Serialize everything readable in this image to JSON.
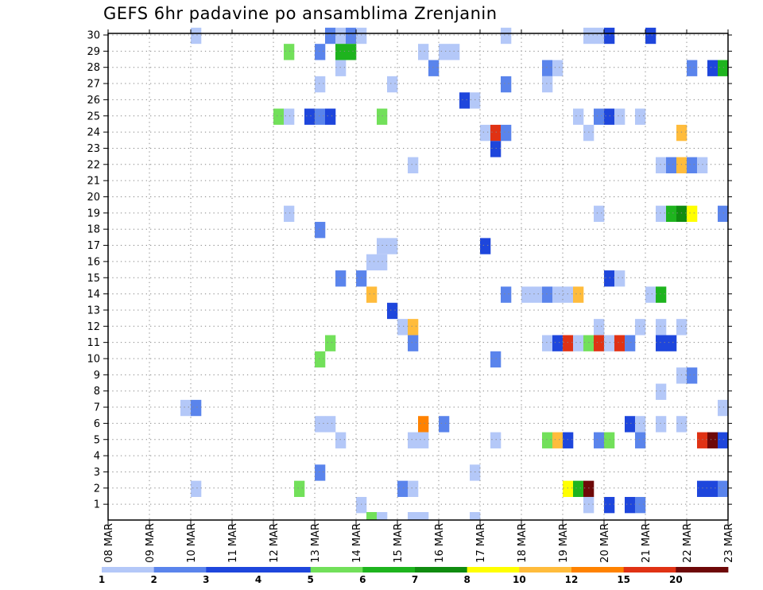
{
  "chart_data": {
    "type": "heatmap",
    "title": "GEFS 6hr padavine po ansamblima Zrenjanin",
    "xlabel": "",
    "ylabel": "",
    "x_tick_labels": [
      "08 MAR",
      "09 MAR",
      "10 MAR",
      "11 MAR",
      "12 MAR",
      "13 MAR",
      "14 MAR",
      "15 MAR",
      "16 MAR",
      "17 MAR",
      "18 MAR",
      "19 MAR",
      "20 MAR",
      "21 MAR",
      "22 MAR",
      "23 MAR"
    ],
    "y_tick_labels": [
      "1",
      "2",
      "3",
      "4",
      "5",
      "6",
      "7",
      "8",
      "9",
      "10",
      "11",
      "12",
      "13",
      "14",
      "15",
      "16",
      "17",
      "18",
      "19",
      "20",
      "21",
      "22",
      "23",
      "24",
      "25",
      "26",
      "27",
      "28",
      "29",
      "30"
    ],
    "x_unit": "6-hour step from 08 MAR 00Z",
    "xlim": [
      0,
      60
    ],
    "ylim": [
      0,
      30
    ],
    "grid": true,
    "legend": {
      "placement": "bottom",
      "labels": [
        "1",
        "2",
        "3",
        "4",
        "5",
        "6",
        "7",
        "8",
        "10",
        "12",
        "15",
        "20"
      ],
      "colors": [
        "#b4c8f8",
        "#5a84ec",
        "#1e46dc",
        "#1e46dc",
        "#72e05a",
        "#1eb41e",
        "#108c10",
        "#ffff00",
        "#ffbc3c",
        "#ff8200",
        "#e03214",
        "#6e0808"
      ]
    },
    "cells": [
      {
        "t": 8,
        "m": 30,
        "c": 0
      },
      {
        "t": 21,
        "m": 30,
        "c": 1
      },
      {
        "t": 22,
        "m": 30,
        "c": 0
      },
      {
        "t": 23,
        "m": 30,
        "c": 1
      },
      {
        "t": 24,
        "m": 30,
        "c": 0
      },
      {
        "t": 38,
        "m": 30,
        "c": 0
      },
      {
        "t": 46,
        "m": 30,
        "c": 0
      },
      {
        "t": 47,
        "m": 30,
        "c": 0
      },
      {
        "t": 48,
        "m": 30,
        "c": 2
      },
      {
        "t": 52,
        "m": 30,
        "c": 2
      },
      {
        "t": 17,
        "m": 29,
        "c": 4
      },
      {
        "t": 20,
        "m": 29,
        "c": 1
      },
      {
        "t": 22,
        "m": 29,
        "c": 5
      },
      {
        "t": 23,
        "m": 29,
        "c": 5
      },
      {
        "t": 30,
        "m": 29,
        "c": 0
      },
      {
        "t": 32,
        "m": 29,
        "c": 0
      },
      {
        "t": 33,
        "m": 29,
        "c": 0
      },
      {
        "t": 22,
        "m": 28,
        "c": 0
      },
      {
        "t": 31,
        "m": 28,
        "c": 1
      },
      {
        "t": 42,
        "m": 28,
        "c": 1
      },
      {
        "t": 43,
        "m": 28,
        "c": 0
      },
      {
        "t": 56,
        "m": 28,
        "c": 1
      },
      {
        "t": 58,
        "m": 28,
        "c": 2
      },
      {
        "t": 59,
        "m": 28,
        "c": 5
      },
      {
        "t": 20,
        "m": 27,
        "c": 0
      },
      {
        "t": 27,
        "m": 27,
        "c": 0
      },
      {
        "t": 38,
        "m": 27,
        "c": 1
      },
      {
        "t": 42,
        "m": 27,
        "c": 0
      },
      {
        "t": 34,
        "m": 26,
        "c": 2
      },
      {
        "t": 35,
        "m": 26,
        "c": 0
      },
      {
        "t": 16,
        "m": 25,
        "c": 4
      },
      {
        "t": 17,
        "m": 25,
        "c": 0
      },
      {
        "t": 19,
        "m": 25,
        "c": 2
      },
      {
        "t": 20,
        "m": 25,
        "c": 1
      },
      {
        "t": 21,
        "m": 25,
        "c": 2
      },
      {
        "t": 26,
        "m": 25,
        "c": 4
      },
      {
        "t": 45,
        "m": 25,
        "c": 0
      },
      {
        "t": 47,
        "m": 25,
        "c": 1
      },
      {
        "t": 48,
        "m": 25,
        "c": 2
      },
      {
        "t": 49,
        "m": 25,
        "c": 0
      },
      {
        "t": 51,
        "m": 25,
        "c": 0
      },
      {
        "t": 36,
        "m": 24,
        "c": 0
      },
      {
        "t": 37,
        "m": 24,
        "c": 10
      },
      {
        "t": 38,
        "m": 24,
        "c": 1
      },
      {
        "t": 46,
        "m": 24,
        "c": 0
      },
      {
        "t": 55,
        "m": 24,
        "c": 8
      },
      {
        "t": 37,
        "m": 23,
        "c": 2
      },
      {
        "t": 29,
        "m": 22,
        "c": 0
      },
      {
        "t": 53,
        "m": 22,
        "c": 0
      },
      {
        "t": 54,
        "m": 22,
        "c": 1
      },
      {
        "t": 55,
        "m": 22,
        "c": 8
      },
      {
        "t": 56,
        "m": 22,
        "c": 1
      },
      {
        "t": 57,
        "m": 22,
        "c": 0
      },
      {
        "t": 17,
        "m": 19,
        "c": 0
      },
      {
        "t": 47,
        "m": 19,
        "c": 0
      },
      {
        "t": 53,
        "m": 19,
        "c": 0
      },
      {
        "t": 54,
        "m": 19,
        "c": 5
      },
      {
        "t": 55,
        "m": 19,
        "c": 6
      },
      {
        "t": 56,
        "m": 19,
        "c": 7
      },
      {
        "t": 59,
        "m": 19,
        "c": 1
      },
      {
        "t": 20,
        "m": 18,
        "c": 1
      },
      {
        "t": 26,
        "m": 17,
        "c": 0
      },
      {
        "t": 27,
        "m": 17,
        "c": 0
      },
      {
        "t": 36,
        "m": 17,
        "c": 2
      },
      {
        "t": 25,
        "m": 16,
        "c": 0
      },
      {
        "t": 26,
        "m": 16,
        "c": 0
      },
      {
        "t": 22,
        "m": 15,
        "c": 1
      },
      {
        "t": 24,
        "m": 15,
        "c": 1
      },
      {
        "t": 48,
        "m": 15,
        "c": 2
      },
      {
        "t": 49,
        "m": 15,
        "c": 0
      },
      {
        "t": 25,
        "m": 14,
        "c": 8
      },
      {
        "t": 38,
        "m": 14,
        "c": 1
      },
      {
        "t": 40,
        "m": 14,
        "c": 0
      },
      {
        "t": 41,
        "m": 14,
        "c": 0
      },
      {
        "t": 42,
        "m": 14,
        "c": 1
      },
      {
        "t": 43,
        "m": 14,
        "c": 0
      },
      {
        "t": 44,
        "m": 14,
        "c": 0
      },
      {
        "t": 45,
        "m": 14,
        "c": 8
      },
      {
        "t": 52,
        "m": 14,
        "c": 0
      },
      {
        "t": 53,
        "m": 14,
        "c": 5
      },
      {
        "t": 27,
        "m": 13,
        "c": 2
      },
      {
        "t": 28,
        "m": 12,
        "c": 0
      },
      {
        "t": 29,
        "m": 12,
        "c": 8
      },
      {
        "t": 47,
        "m": 12,
        "c": 0
      },
      {
        "t": 51,
        "m": 12,
        "c": 0
      },
      {
        "t": 53,
        "m": 12,
        "c": 0
      },
      {
        "t": 55,
        "m": 12,
        "c": 0
      },
      {
        "t": 21,
        "m": 11,
        "c": 4
      },
      {
        "t": 29,
        "m": 11,
        "c": 1
      },
      {
        "t": 42,
        "m": 11,
        "c": 0
      },
      {
        "t": 43,
        "m": 11,
        "c": 2
      },
      {
        "t": 44,
        "m": 11,
        "c": 10
      },
      {
        "t": 45,
        "m": 11,
        "c": 0
      },
      {
        "t": 46,
        "m": 11,
        "c": 4
      },
      {
        "t": 47,
        "m": 11,
        "c": 10
      },
      {
        "t": 48,
        "m": 11,
        "c": 0
      },
      {
        "t": 49,
        "m": 11,
        "c": 10
      },
      {
        "t": 50,
        "m": 11,
        "c": 1
      },
      {
        "t": 53,
        "m": 11,
        "c": 2
      },
      {
        "t": 54,
        "m": 11,
        "c": 2
      },
      {
        "t": 20,
        "m": 10,
        "c": 4
      },
      {
        "t": 37,
        "m": 10,
        "c": 1
      },
      {
        "t": 55,
        "m": 9,
        "c": 0
      },
      {
        "t": 56,
        "m": 9,
        "c": 1
      },
      {
        "t": 53,
        "m": 8,
        "c": 0
      },
      {
        "t": 7,
        "m": 7,
        "c": 0
      },
      {
        "t": 8,
        "m": 7,
        "c": 1
      },
      {
        "t": 59,
        "m": 7,
        "c": 0
      },
      {
        "t": 20,
        "m": 6,
        "c": 0
      },
      {
        "t": 21,
        "m": 6,
        "c": 0
      },
      {
        "t": 30,
        "m": 6,
        "c": 9
      },
      {
        "t": 32,
        "m": 6,
        "c": 1
      },
      {
        "t": 50,
        "m": 6,
        "c": 2
      },
      {
        "t": 51,
        "m": 6,
        "c": 0
      },
      {
        "t": 53,
        "m": 6,
        "c": 0
      },
      {
        "t": 55,
        "m": 6,
        "c": 0
      },
      {
        "t": 22,
        "m": 5,
        "c": 0
      },
      {
        "t": 29,
        "m": 5,
        "c": 0
      },
      {
        "t": 30,
        "m": 5,
        "c": 0
      },
      {
        "t": 37,
        "m": 5,
        "c": 0
      },
      {
        "t": 42,
        "m": 5,
        "c": 4
      },
      {
        "t": 43,
        "m": 5,
        "c": 8
      },
      {
        "t": 44,
        "m": 5,
        "c": 2
      },
      {
        "t": 47,
        "m": 5,
        "c": 1
      },
      {
        "t": 48,
        "m": 5,
        "c": 4
      },
      {
        "t": 51,
        "m": 5,
        "c": 1
      },
      {
        "t": 57,
        "m": 5,
        "c": 10
      },
      {
        "t": 58,
        "m": 5,
        "c": 11
      },
      {
        "t": 59,
        "m": 5,
        "c": 2
      },
      {
        "t": 20,
        "m": 3,
        "c": 1
      },
      {
        "t": 35,
        "m": 3,
        "c": 0
      },
      {
        "t": 8,
        "m": 2,
        "c": 0
      },
      {
        "t": 18,
        "m": 2,
        "c": 4
      },
      {
        "t": 28,
        "m": 2,
        "c": 1
      },
      {
        "t": 29,
        "m": 2,
        "c": 0
      },
      {
        "t": 44,
        "m": 2,
        "c": 7
      },
      {
        "t": 45,
        "m": 2,
        "c": 5
      },
      {
        "t": 46,
        "m": 2,
        "c": 11
      },
      {
        "t": 57,
        "m": 2,
        "c": 2
      },
      {
        "t": 58,
        "m": 2,
        "c": 2
      },
      {
        "t": 59,
        "m": 2,
        "c": 1
      },
      {
        "t": 24,
        "m": 1,
        "c": 0
      },
      {
        "t": 46,
        "m": 1,
        "c": 0
      },
      {
        "t": 48,
        "m": 1,
        "c": 2
      },
      {
        "t": 50,
        "m": 1,
        "c": 2
      },
      {
        "t": 51,
        "m": 1,
        "c": 1
      },
      {
        "t": 25,
        "m": 0,
        "c": 4
      },
      {
        "t": 26,
        "m": 0,
        "c": 0
      },
      {
        "t": 29,
        "m": 0,
        "c": 0
      },
      {
        "t": 30,
        "m": 0,
        "c": 0
      },
      {
        "t": 35,
        "m": 0,
        "c": 0
      }
    ]
  }
}
